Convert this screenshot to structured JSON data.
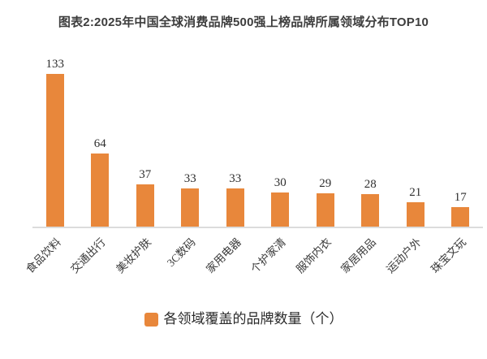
{
  "title": "图表2:2025年中国全球消费品牌500强上榜品牌所属领域分布TOP10",
  "legend": {
    "label": "各领域覆盖的品牌数量（个）",
    "swatch_color": "#E8873B",
    "position": "bottom"
  },
  "colors": {
    "bar": "#E8873B",
    "title_text": "#3D3D3D",
    "value_label_text": "#2E2E2E",
    "category_label_text": "#3A3A3A",
    "axis_line": "#DCDCDC",
    "background": "#FFFFFF"
  },
  "chart_data": {
    "type": "bar",
    "title": "图表2:2025年中国全球消费品牌500强上榜品牌所属领域分布TOP10",
    "categories": [
      "食品饮料",
      "交通出行",
      "美妆护肤",
      "3C数码",
      "家用电器",
      "个护家清",
      "服饰内衣",
      "家居用品",
      "运动户外",
      "珠宝文玩"
    ],
    "values": [
      133,
      64,
      37,
      33,
      33,
      30,
      29,
      28,
      21,
      17
    ],
    "series": [
      {
        "name": "各领域覆盖的品牌数量（个）",
        "values": [
          133,
          64,
          37,
          33,
          33,
          30,
          29,
          28,
          21,
          17
        ],
        "color": "#E8873B"
      }
    ],
    "xlabel": "",
    "ylabel": "",
    "ylim": [
      0,
      150
    ],
    "grid": false,
    "y_axis_shown": false,
    "value_labels_shown": true,
    "category_label_rotation_deg": -45,
    "legend_position": "bottom"
  }
}
